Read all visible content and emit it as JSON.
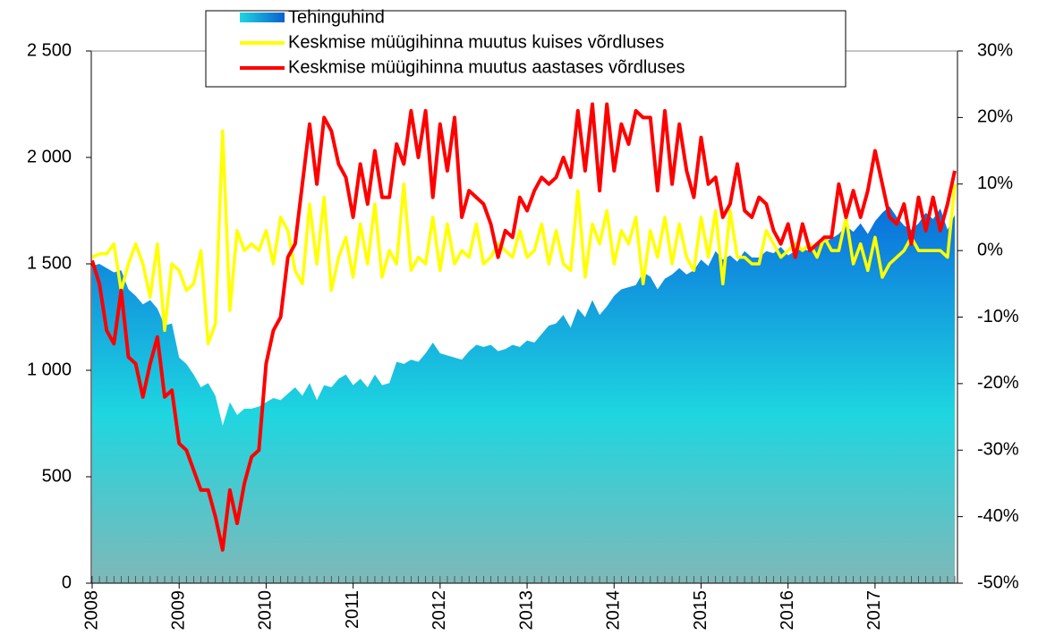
{
  "chart_data": {
    "type": "line",
    "categories": [
      "2008",
      null,
      null,
      null,
      null,
      null,
      null,
      null,
      null,
      null,
      null,
      null,
      "2009",
      null,
      null,
      null,
      null,
      null,
      null,
      null,
      null,
      null,
      null,
      null,
      "2010",
      null,
      null,
      null,
      null,
      null,
      null,
      null,
      null,
      null,
      null,
      null,
      "2011",
      null,
      null,
      null,
      null,
      null,
      null,
      null,
      null,
      null,
      null,
      null,
      "2012",
      null,
      null,
      null,
      null,
      null,
      null,
      null,
      null,
      null,
      null,
      null,
      "2013",
      null,
      null,
      null,
      null,
      null,
      null,
      null,
      null,
      null,
      null,
      null,
      "2014",
      null,
      null,
      null,
      null,
      null,
      null,
      null,
      null,
      null,
      null,
      null,
      "2015",
      null,
      null,
      null,
      null,
      null,
      null,
      null,
      null,
      null,
      null,
      null,
      "2016",
      null,
      null,
      null,
      null,
      null,
      null,
      null,
      null,
      null,
      null,
      null,
      "2017",
      null,
      null,
      null,
      null,
      null,
      null,
      null,
      null,
      null,
      null,
      null
    ],
    "series": [
      {
        "name": "Tehinguhind",
        "kind": "area",
        "color": "#1a7fd8",
        "values": [
          1490,
          1500,
          1480,
          1460,
          1470,
          1380,
          1350,
          1310,
          1330,
          1290,
          1210,
          1220,
          1060,
          1030,
          980,
          920,
          940,
          880,
          740,
          850,
          790,
          820,
          820,
          830,
          850,
          870,
          860,
          890,
          920,
          880,
          940,
          860,
          930,
          920,
          960,
          980,
          930,
          960,
          920,
          980,
          930,
          940,
          1040,
          1030,
          1050,
          1040,
          1080,
          1130,
          1080,
          1070,
          1060,
          1050,
          1090,
          1120,
          1110,
          1120,
          1090,
          1100,
          1120,
          1110,
          1140,
          1130,
          1170,
          1210,
          1220,
          1260,
          1200,
          1290,
          1250,
          1330,
          1260,
          1300,
          1350,
          1380,
          1390,
          1400,
          1460,
          1440,
          1380,
          1430,
          1450,
          1480,
          1450,
          1470,
          1520,
          1490,
          1560,
          1520,
          1540,
          1510,
          1560,
          1530,
          1530,
          1560,
          1550,
          1580,
          1540,
          1560,
          1570,
          1560,
          1590,
          1600,
          1620,
          1640,
          1680,
          1650,
          1690,
          1640,
          1700,
          1740,
          1770,
          1720,
          1680,
          1660,
          1690,
          1740,
          1710,
          1760,
          1660,
          1730
        ]
      },
      {
        "name": "Keskmise müügihinna muutus kuises võrdluses",
        "color": "#ffff00",
        "axis": "y2",
        "values": [
          -1,
          -0.5,
          -0.5,
          1,
          -6,
          -2,
          1,
          -2,
          -7,
          1,
          -12,
          -2,
          -3,
          -6,
          -5,
          0,
          -14,
          -11,
          18,
          -9,
          3,
          0,
          1,
          0,
          3,
          -2,
          5,
          3,
          -3,
          -5,
          7,
          -2,
          8,
          -6,
          -1,
          2,
          -4,
          4,
          -2,
          7,
          -4,
          0,
          -2,
          10,
          -3,
          -1,
          -2,
          5,
          -3,
          4,
          -2,
          0,
          -1,
          4,
          -2,
          -1,
          1,
          0,
          -1,
          3,
          -1,
          0,
          4,
          -2,
          3,
          -2,
          -3,
          9,
          -4,
          4,
          1,
          6,
          -2,
          3,
          1,
          5,
          -5,
          3,
          -1,
          5,
          -2,
          4,
          -1,
          -3,
          5,
          -1,
          6,
          -5,
          6,
          -1,
          -1,
          -2,
          -2,
          3,
          1,
          -1,
          0,
          1,
          0,
          1,
          -1,
          2,
          0,
          0,
          5,
          -2,
          1,
          -3,
          2,
          -4,
          -2,
          -1,
          0,
          2,
          0,
          0,
          0,
          0,
          -1,
          10
        ]
      },
      {
        "name": "Keskmise müügihinna muutus aastases võrdluses",
        "color": "#ff0000",
        "axis": "y2",
        "values": [
          -1.5,
          -5,
          -12,
          -14,
          -6,
          -16,
          -17,
          -22,
          -17,
          -13,
          -22,
          -21,
          -29,
          -30,
          -33,
          -36,
          -36,
          -40,
          -45,
          -36,
          -41,
          -35,
          -31,
          -30,
          -17,
          -12,
          -10,
          -1,
          1,
          10,
          19,
          10,
          20,
          18,
          13,
          11,
          5,
          13,
          7,
          15,
          8,
          8,
          16,
          13,
          21,
          14,
          21,
          8,
          19,
          12,
          20,
          5,
          9,
          8,
          7,
          4,
          -1,
          3,
          2,
          8,
          6,
          9,
          11,
          10,
          11,
          14,
          11,
          21,
          12,
          22,
          9,
          22,
          12,
          19,
          16,
          21,
          20,
          20,
          9,
          21,
          10,
          19,
          12,
          8,
          17,
          10,
          11,
          5,
          7,
          13,
          6,
          5,
          8,
          7,
          3,
          1,
          4,
          -1,
          4,
          0,
          1,
          2,
          2,
          10,
          5,
          9,
          5,
          9,
          15,
          10,
          5,
          4,
          7,
          1,
          8,
          3,
          8,
          3,
          7,
          12
        ]
      }
    ],
    "ylim": [
      0,
      2500
    ],
    "yticks": [
      0,
      500,
      {
        "value": 1000,
        "label": "1 000"
      },
      {
        "value": 1500,
        "label": "1 500"
      },
      {
        "value": 2000,
        "label": "2 000"
      },
      {
        "value": 2500,
        "label": "2 500"
      }
    ],
    "y2lim": [
      -50,
      30
    ],
    "y2ticks": [
      {
        "value": -50,
        "label": "-50%"
      },
      {
        "value": -40,
        "label": "-40%"
      },
      {
        "value": -30,
        "label": "-30%"
      },
      {
        "value": -20,
        "label": "-20%"
      },
      {
        "value": -10,
        "label": "-10%"
      },
      {
        "value": 0,
        "label": "0%"
      },
      {
        "value": 10,
        "label": "10%"
      },
      {
        "value": 20,
        "label": "20%"
      },
      {
        "value": 30,
        "label": "30%"
      }
    ]
  }
}
